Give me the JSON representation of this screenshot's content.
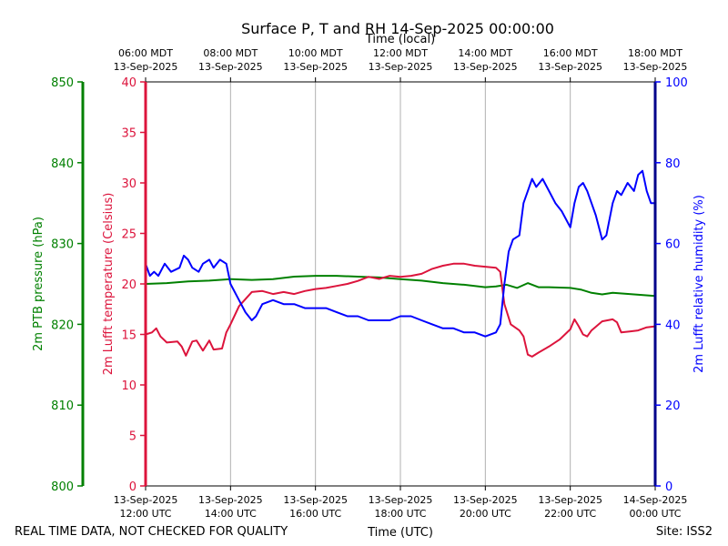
{
  "chart_data": {
    "type": "line",
    "title": "Surface P, T and RH 14-Sep-2025 00:00:00",
    "top_axis_label": "Time (local)",
    "xlabel": "Time (UTC)",
    "footer_left": "REAL TIME DATA, NOT CHECKED FOR QUALITY",
    "footer_right": "Site: ISS2",
    "x_hours_utc": [
      12,
      24
    ],
    "bottom_ticks": [
      {
        "h": 12,
        "line1": "13-Sep-2025",
        "line2": "12:00 UTC"
      },
      {
        "h": 14,
        "line1": "13-Sep-2025",
        "line2": "14:00 UTC"
      },
      {
        "h": 16,
        "line1": "13-Sep-2025",
        "line2": "16:00 UTC"
      },
      {
        "h": 18,
        "line1": "13-Sep-2025",
        "line2": "18:00 UTC"
      },
      {
        "h": 20,
        "line1": "13-Sep-2025",
        "line2": "20:00 UTC"
      },
      {
        "h": 22,
        "line1": "13-Sep-2025",
        "line2": "22:00 UTC"
      },
      {
        "h": 24,
        "line1": "14-Sep-2025",
        "line2": "00:00 UTC"
      }
    ],
    "top_ticks": [
      {
        "h": 12,
        "line1": "06:00 MDT",
        "line2": "13-Sep-2025"
      },
      {
        "h": 14,
        "line1": "08:00 MDT",
        "line2": "13-Sep-2025"
      },
      {
        "h": 16,
        "line1": "10:00 MDT",
        "line2": "13-Sep-2025"
      },
      {
        "h": 18,
        "line1": "12:00 MDT",
        "line2": "13-Sep-2025"
      },
      {
        "h": 20,
        "line1": "14:00 MDT",
        "line2": "13-Sep-2025"
      },
      {
        "h": 22,
        "line1": "16:00 MDT",
        "line2": "13-Sep-2025"
      },
      {
        "h": 24,
        "line1": "18:00 MDT",
        "line2": "13-Sep-2025"
      }
    ],
    "gridlines_at_h": [
      14,
      16,
      18,
      20,
      22
    ],
    "axes": {
      "pressure": {
        "label": "2m PTB pressure (hPa)",
        "ylim": [
          800,
          850
        ],
        "ticks": [
          800,
          810,
          820,
          830,
          840,
          850
        ],
        "color": "#008000"
      },
      "temperature": {
        "label": "2m Lufft temperature (Celsius)",
        "ylim": [
          0,
          40
        ],
        "ticks": [
          0,
          5,
          10,
          15,
          20,
          25,
          30,
          35,
          40
        ],
        "color": "#dc143c"
      },
      "humidity": {
        "label": "2m Lufft relative humidity (%)",
        "ylim": [
          0,
          100
        ],
        "ticks": [
          0,
          20,
          40,
          60,
          80,
          100
        ],
        "color": "#0000ff"
      }
    },
    "series": [
      {
        "name": "2m PTB pressure",
        "axis": "pressure",
        "color": "#008000",
        "points": [
          [
            12.0,
            825.0
          ],
          [
            12.5,
            825.1
          ],
          [
            13.0,
            825.3
          ],
          [
            13.5,
            825.4
          ],
          [
            14.0,
            825.6
          ],
          [
            14.5,
            825.5
          ],
          [
            15.0,
            825.6
          ],
          [
            15.5,
            825.9
          ],
          [
            16.0,
            826.0
          ],
          [
            16.5,
            826.0
          ],
          [
            17.0,
            825.9
          ],
          [
            17.5,
            825.8
          ],
          [
            18.0,
            825.6
          ],
          [
            18.5,
            825.4
          ],
          [
            19.0,
            825.1
          ],
          [
            19.5,
            824.9
          ],
          [
            20.0,
            824.6
          ],
          [
            20.25,
            824.7
          ],
          [
            20.5,
            824.9
          ],
          [
            20.75,
            824.5
          ],
          [
            21.0,
            825.1
          ],
          [
            21.25,
            824.6
          ],
          [
            21.5,
            824.6
          ],
          [
            22.0,
            824.5
          ],
          [
            22.25,
            824.3
          ],
          [
            22.5,
            823.9
          ],
          [
            22.75,
            823.7
          ],
          [
            23.0,
            823.9
          ],
          [
            23.5,
            823.7
          ],
          [
            24.0,
            823.5
          ]
        ]
      },
      {
        "name": "2m Lufft temperature",
        "axis": "temperature",
        "color": "#dc143c",
        "points": [
          [
            12.0,
            15.0
          ],
          [
            12.15,
            15.2
          ],
          [
            12.25,
            15.6
          ],
          [
            12.35,
            14.8
          ],
          [
            12.5,
            14.2
          ],
          [
            12.75,
            14.3
          ],
          [
            12.85,
            13.8
          ],
          [
            12.95,
            12.9
          ],
          [
            13.1,
            14.3
          ],
          [
            13.2,
            14.4
          ],
          [
            13.35,
            13.4
          ],
          [
            13.5,
            14.4
          ],
          [
            13.6,
            13.5
          ],
          [
            13.8,
            13.6
          ],
          [
            13.9,
            15.2
          ],
          [
            14.0,
            16.0
          ],
          [
            14.2,
            17.8
          ],
          [
            14.5,
            19.2
          ],
          [
            14.75,
            19.3
          ],
          [
            15.0,
            19.0
          ],
          [
            15.25,
            19.2
          ],
          [
            15.5,
            19.0
          ],
          [
            15.75,
            19.3
          ],
          [
            16.0,
            19.5
          ],
          [
            16.25,
            19.6
          ],
          [
            16.5,
            19.8
          ],
          [
            16.75,
            20.0
          ],
          [
            17.0,
            20.3
          ],
          [
            17.25,
            20.7
          ],
          [
            17.5,
            20.5
          ],
          [
            17.75,
            20.8
          ],
          [
            18.0,
            20.7
          ],
          [
            18.25,
            20.8
          ],
          [
            18.5,
            21.0
          ],
          [
            18.75,
            21.5
          ],
          [
            19.0,
            21.8
          ],
          [
            19.25,
            22.0
          ],
          [
            19.5,
            22.0
          ],
          [
            19.75,
            21.8
          ],
          [
            20.0,
            21.7
          ],
          [
            20.25,
            21.6
          ],
          [
            20.35,
            21.2
          ],
          [
            20.45,
            18.0
          ],
          [
            20.6,
            16.0
          ],
          [
            20.8,
            15.4
          ],
          [
            20.9,
            14.8
          ],
          [
            21.0,
            13.0
          ],
          [
            21.1,
            12.8
          ],
          [
            21.25,
            13.2
          ],
          [
            21.5,
            13.8
          ],
          [
            21.75,
            14.5
          ],
          [
            22.0,
            15.5
          ],
          [
            22.1,
            16.5
          ],
          [
            22.2,
            15.8
          ],
          [
            22.3,
            15.0
          ],
          [
            22.4,
            14.8
          ],
          [
            22.5,
            15.4
          ],
          [
            22.75,
            16.3
          ],
          [
            23.0,
            16.5
          ],
          [
            23.1,
            16.2
          ],
          [
            23.2,
            15.2
          ],
          [
            23.4,
            15.3
          ],
          [
            23.6,
            15.4
          ],
          [
            23.8,
            15.7
          ],
          [
            24.0,
            15.8
          ]
        ]
      },
      {
        "name": "2m Lufft relative humidity",
        "axis": "humidity",
        "color": "#0000ff",
        "points": [
          [
            12.0,
            55.0
          ],
          [
            12.1,
            52.0
          ],
          [
            12.2,
            53.0
          ],
          [
            12.3,
            52.0
          ],
          [
            12.45,
            55.0
          ],
          [
            12.6,
            53.0
          ],
          [
            12.8,
            54.0
          ],
          [
            12.9,
            57.0
          ],
          [
            13.0,
            56.0
          ],
          [
            13.1,
            54.0
          ],
          [
            13.25,
            53.0
          ],
          [
            13.35,
            55.0
          ],
          [
            13.5,
            56.0
          ],
          [
            13.6,
            54.0
          ],
          [
            13.75,
            56.0
          ],
          [
            13.9,
            55.0
          ],
          [
            14.0,
            50.0
          ],
          [
            14.15,
            47.0
          ],
          [
            14.35,
            43.0
          ],
          [
            14.5,
            41.0
          ],
          [
            14.6,
            42.0
          ],
          [
            14.75,
            45.0
          ],
          [
            15.0,
            46.0
          ],
          [
            15.25,
            45.0
          ],
          [
            15.5,
            45.0
          ],
          [
            15.75,
            44.0
          ],
          [
            16.0,
            44.0
          ],
          [
            16.25,
            44.0
          ],
          [
            16.5,
            43.0
          ],
          [
            16.75,
            42.0
          ],
          [
            17.0,
            42.0
          ],
          [
            17.25,
            41.0
          ],
          [
            17.5,
            41.0
          ],
          [
            17.75,
            41.0
          ],
          [
            18.0,
            42.0
          ],
          [
            18.25,
            42.0
          ],
          [
            18.5,
            41.0
          ],
          [
            18.75,
            40.0
          ],
          [
            19.0,
            39.0
          ],
          [
            19.25,
            39.0
          ],
          [
            19.5,
            38.0
          ],
          [
            19.75,
            38.0
          ],
          [
            20.0,
            37.0
          ],
          [
            20.25,
            38.0
          ],
          [
            20.35,
            40.0
          ],
          [
            20.45,
            50.0
          ],
          [
            20.55,
            58.0
          ],
          [
            20.65,
            61.0
          ],
          [
            20.8,
            62.0
          ],
          [
            20.9,
            70.0
          ],
          [
            21.0,
            73.0
          ],
          [
            21.1,
            76.0
          ],
          [
            21.2,
            74.0
          ],
          [
            21.35,
            76.0
          ],
          [
            21.5,
            73.0
          ],
          [
            21.65,
            70.0
          ],
          [
            21.8,
            68.0
          ],
          [
            22.0,
            64.0
          ],
          [
            22.1,
            70.0
          ],
          [
            22.2,
            74.0
          ],
          [
            22.3,
            75.0
          ],
          [
            22.4,
            73.0
          ],
          [
            22.5,
            70.0
          ],
          [
            22.6,
            67.0
          ],
          [
            22.75,
            61.0
          ],
          [
            22.85,
            62.0
          ],
          [
            23.0,
            70.0
          ],
          [
            23.1,
            73.0
          ],
          [
            23.2,
            72.0
          ],
          [
            23.35,
            75.0
          ],
          [
            23.5,
            73.0
          ],
          [
            23.6,
            77.0
          ],
          [
            23.7,
            78.0
          ],
          [
            23.8,
            73.0
          ],
          [
            23.9,
            70.0
          ],
          [
            24.0,
            70.0
          ]
        ]
      }
    ]
  }
}
